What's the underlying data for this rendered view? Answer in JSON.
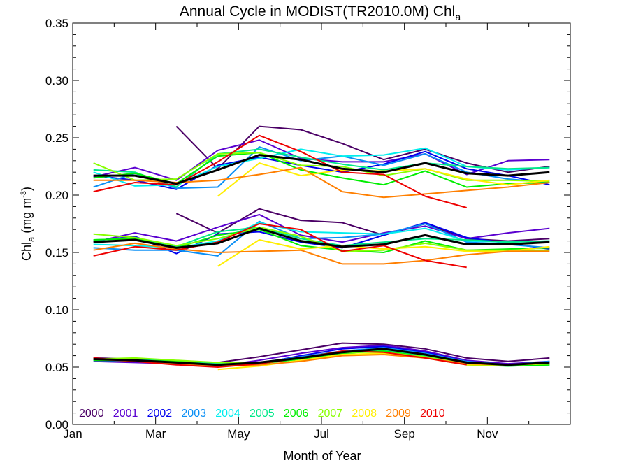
{
  "chart_data": {
    "type": "line",
    "title": "Annual Cycle in MODIST(TR2010.0M) Chl",
    "title_subscript": "a",
    "xlabel": "Month of Year",
    "ylabel": {
      "main": "Chl",
      "sub": "a",
      "unit": " (mg m",
      "sup": "-3",
      "close": ")"
    },
    "x_ticks": [
      "Jan",
      "Mar",
      "May",
      "Jul",
      "Sep",
      "Nov"
    ],
    "x_tick_positions": [
      0,
      2,
      4,
      6,
      8,
      10
    ],
    "xlim": [
      0,
      12
    ],
    "ylim": [
      0,
      0.35
    ],
    "y_ticks": [
      "0.00",
      "0.05",
      "0.10",
      "0.15",
      "0.20",
      "0.25",
      "0.30",
      "0.35"
    ],
    "y_tick_values": [
      0,
      0.05,
      0.1,
      0.15,
      0.2,
      0.25,
      0.3,
      0.35
    ],
    "legend_placement": "bottom-left",
    "x": [
      0.5,
      1.5,
      2.5,
      3.5,
      4.5,
      5.5,
      6.5,
      7.5,
      8.5,
      9.5,
      10.5,
      11.5
    ],
    "groups": [
      "upper",
      "middle",
      "lower"
    ],
    "series": [
      {
        "name": "2000",
        "color": "#4b0066",
        "upper": [
          null,
          null,
          0.26,
          0.223,
          0.26,
          0.257,
          0.245,
          0.231,
          0.24,
          0.228,
          0.22,
          0.225
        ],
        "middle": [
          null,
          null,
          0.184,
          0.167,
          0.188,
          0.178,
          0.176,
          0.165,
          0.175,
          0.162,
          0.16,
          0.162
        ],
        "lower": [
          0.058,
          0.057,
          0.055,
          0.054,
          0.059,
          0.065,
          0.071,
          0.07,
          0.066,
          0.058,
          0.055,
          0.058
        ]
      },
      {
        "name": "2001",
        "color": "#5a00d0",
        "upper": [
          0.216,
          0.224,
          0.213,
          0.239,
          0.248,
          0.232,
          0.229,
          0.229,
          0.236,
          0.218,
          0.23,
          0.231
        ],
        "middle": [
          0.159,
          0.167,
          0.16,
          0.172,
          0.183,
          0.165,
          0.159,
          0.167,
          0.173,
          0.162,
          0.167,
          0.171
        ],
        "lower": [
          0.055,
          0.054,
          0.053,
          0.051,
          0.056,
          0.062,
          0.067,
          0.069,
          0.064,
          0.056,
          0.053,
          0.055
        ]
      },
      {
        "name": "2002",
        "color": "#0000ee",
        "upper": [
          0.217,
          0.213,
          0.205,
          0.226,
          0.233,
          0.226,
          0.22,
          0.227,
          0.238,
          0.223,
          0.217,
          0.209
        ],
        "middle": [
          0.16,
          0.164,
          0.149,
          0.166,
          0.168,
          0.159,
          0.154,
          0.165,
          0.176,
          0.163,
          0.158,
          0.153
        ],
        "lower": [
          0.056,
          0.055,
          0.054,
          0.052,
          0.053,
          0.06,
          0.066,
          0.068,
          0.063,
          0.055,
          0.052,
          0.054
        ]
      },
      {
        "name": "2003",
        "color": "#0a8ff5",
        "upper": [
          0.207,
          0.219,
          0.206,
          0.207,
          0.242,
          0.23,
          0.234,
          0.226,
          0.236,
          0.22,
          0.214,
          0.211
        ],
        "middle": [
          0.154,
          0.152,
          0.152,
          0.147,
          0.177,
          0.162,
          0.163,
          0.166,
          0.175,
          0.159,
          0.157,
          0.154
        ],
        "lower": [
          0.057,
          0.056,
          0.055,
          0.053,
          0.054,
          0.059,
          0.064,
          0.067,
          0.062,
          0.055,
          0.052,
          0.055
        ]
      },
      {
        "name": "2004",
        "color": "#00eeee",
        "upper": [
          0.22,
          0.208,
          0.209,
          0.225,
          0.232,
          0.24,
          0.234,
          0.235,
          0.241,
          0.225,
          0.222,
          0.224
        ],
        "middle": [
          0.157,
          0.156,
          0.154,
          0.16,
          0.176,
          0.168,
          0.167,
          0.166,
          0.171,
          0.16,
          0.159,
          0.16
        ],
        "lower": [
          0.056,
          0.056,
          0.054,
          0.052,
          0.053,
          0.058,
          0.063,
          0.066,
          0.061,
          0.054,
          0.052,
          0.054
        ]
      },
      {
        "name": "2005",
        "color": "#00e88a",
        "upper": [
          0.222,
          0.22,
          0.207,
          0.236,
          0.24,
          0.233,
          0.227,
          0.222,
          0.228,
          0.225,
          0.223,
          0.224
        ],
        "middle": [
          0.161,
          0.162,
          0.155,
          0.168,
          0.172,
          0.162,
          0.156,
          0.159,
          0.162,
          0.161,
          0.159,
          0.16
        ],
        "lower": [
          0.057,
          0.057,
          0.055,
          0.053,
          0.054,
          0.058,
          0.062,
          0.065,
          0.06,
          0.053,
          0.051,
          0.052
        ]
      },
      {
        "name": "2006",
        "color": "#00ee00",
        "upper": [
          0.215,
          0.219,
          0.21,
          0.234,
          0.237,
          0.222,
          0.215,
          0.209,
          0.221,
          0.207,
          0.21,
          0.211
        ],
        "middle": [
          0.161,
          0.162,
          0.154,
          0.165,
          0.17,
          0.156,
          0.152,
          0.15,
          0.16,
          0.152,
          0.153,
          0.154
        ],
        "lower": [
          0.056,
          0.056,
          0.055,
          0.052,
          0.053,
          0.057,
          0.062,
          0.064,
          0.059,
          0.052,
          0.051,
          0.052
        ]
      },
      {
        "name": "2007",
        "color": "#88ff00",
        "upper": [
          0.228,
          0.213,
          0.214,
          0.236,
          0.237,
          0.226,
          0.225,
          0.217,
          0.223,
          0.213,
          0.213,
          0.212
        ],
        "middle": [
          0.166,
          0.163,
          0.156,
          0.162,
          0.172,
          0.164,
          0.151,
          0.152,
          0.158,
          0.152,
          0.152,
          0.152
        ],
        "lower": [
          0.057,
          0.058,
          0.056,
          0.054,
          0.054,
          0.058,
          0.063,
          0.063,
          0.059,
          0.053,
          0.052,
          0.053
        ]
      },
      {
        "name": "2008",
        "color": "#ffee00",
        "upper": [
          null,
          null,
          null,
          0.199,
          0.228,
          0.217,
          0.222,
          0.221,
          0.223,
          0.214,
          0.209,
          0.213
        ],
        "middle": [
          null,
          null,
          null,
          0.138,
          0.161,
          0.153,
          0.156,
          0.153,
          0.155,
          0.151,
          0.151,
          0.155
        ],
        "lower": [
          null,
          null,
          null,
          0.048,
          0.051,
          0.056,
          0.061,
          0.062,
          0.058,
          0.052,
          0.052,
          0.053
        ]
      },
      {
        "name": "2009",
        "color": "#ff7f00",
        "upper": [
          0.213,
          0.213,
          0.211,
          0.213,
          0.218,
          0.224,
          0.203,
          0.198,
          0.201,
          0.204,
          0.207,
          0.211
        ],
        "middle": [
          0.152,
          0.158,
          0.153,
          0.15,
          0.151,
          0.152,
          0.14,
          0.14,
          0.143,
          0.148,
          0.151,
          0.151
        ],
        "lower": [
          0.057,
          0.055,
          0.053,
          0.051,
          0.052,
          0.055,
          0.06,
          0.061,
          0.058,
          0.053,
          0.052,
          0.054
        ]
      },
      {
        "name": "2010",
        "color": "#ee0000",
        "upper": [
          0.203,
          0.211,
          0.209,
          0.229,
          0.252,
          0.238,
          0.22,
          0.218,
          0.199,
          0.189,
          null,
          null
        ],
        "middle": [
          0.147,
          0.155,
          0.152,
          0.159,
          0.175,
          0.17,
          0.151,
          0.156,
          0.143,
          0.137,
          null,
          null
        ],
        "lower": [
          0.058,
          0.055,
          0.052,
          0.05,
          0.053,
          0.058,
          0.064,
          0.063,
          0.058,
          0.052,
          null,
          null
        ]
      },
      {
        "name": "",
        "color": "#000000",
        "bold": true,
        "upper": [
          0.217,
          0.217,
          0.21,
          0.222,
          0.235,
          0.231,
          0.223,
          0.22,
          0.228,
          0.219,
          0.217,
          0.22
        ],
        "middle": [
          0.159,
          0.161,
          0.154,
          0.158,
          0.171,
          0.16,
          0.155,
          0.157,
          0.165,
          0.157,
          0.157,
          0.159
        ],
        "lower": [
          0.057,
          0.056,
          0.054,
          0.052,
          0.054,
          0.058,
          0.063,
          0.066,
          0.061,
          0.054,
          0.052,
          0.054
        ]
      }
    ]
  }
}
